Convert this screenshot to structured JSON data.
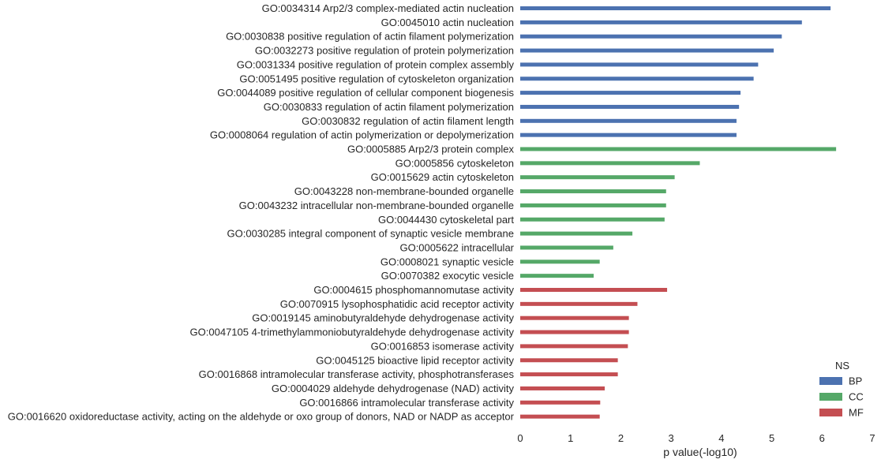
{
  "chart_data": {
    "type": "bar",
    "orientation": "horizontal",
    "xlabel": "p value(-log10)",
    "ylabel": "",
    "xlim": [
      0,
      7
    ],
    "xticks": [
      0,
      1,
      2,
      3,
      4,
      5,
      6,
      7
    ],
    "grid": false,
    "legend_title": "NS",
    "legend_position": "lower-right",
    "series": [
      {
        "name": "BP",
        "color": "#4c72b0",
        "categories": [
          "GO:0034314 Arp2/3 complex-mediated actin nucleation",
          "GO:0045010 actin nucleation",
          "GO:0030838 positive regulation of actin filament polymerization",
          "GO:0032273 positive regulation of protein polymerization",
          "GO:0031334 positive regulation of protein complex assembly",
          "GO:0051495 positive regulation of cytoskeleton organization",
          "GO:0044089 positive regulation of cellular component biogenesis",
          "GO:0030833 regulation of actin filament polymerization",
          "GO:0030832 regulation of actin filament length",
          "GO:0008064 regulation of actin polymerization or depolymerization"
        ],
        "values": [
          6.17,
          5.6,
          5.2,
          5.04,
          4.73,
          4.64,
          4.38,
          4.35,
          4.3,
          4.3
        ]
      },
      {
        "name": "CC",
        "color": "#55a868",
        "categories": [
          "GO:0005885 Arp2/3 protein complex",
          "GO:0005856 cytoskeleton",
          "GO:0015629 actin cytoskeleton",
          "GO:0043228 non-membrane-bounded organelle",
          "GO:0043232 intracellular non-membrane-bounded organelle",
          "GO:0044430 cytoskeletal part",
          "GO:0030285 integral component of synaptic vesicle membrane",
          "GO:0005622 intracellular",
          "GO:0008021 synaptic vesicle",
          "GO:0070382 exocytic vesicle"
        ],
        "values": [
          6.28,
          3.57,
          3.07,
          2.9,
          2.9,
          2.87,
          2.23,
          1.85,
          1.58,
          1.46
        ]
      },
      {
        "name": "MF",
        "color": "#c44e52",
        "categories": [
          "GO:0004615 phosphomannomutase activity",
          "GO:0070915 lysophosphatidic acid receptor activity",
          "GO:0019145 aminobutyraldehyde dehydrogenase activity",
          "GO:0047105 4-trimethylammoniobutyraldehyde dehydrogenase activity",
          "GO:0016853 isomerase activity",
          "GO:0045125 bioactive lipid receptor activity",
          "GO:0016868 intramolecular transferase activity, phosphotransferases",
          "GO:0004029 aldehyde dehydrogenase (NAD) activity",
          "GO:0016866 intramolecular transferase activity",
          "GO:0016620 oxidoreductase activity, acting on the aldehyde or oxo group of donors, NAD or NADP as acceptor"
        ],
        "values": [
          2.92,
          2.33,
          2.16,
          2.16,
          2.14,
          1.94,
          1.94,
          1.68,
          1.59,
          1.58
        ]
      }
    ]
  }
}
